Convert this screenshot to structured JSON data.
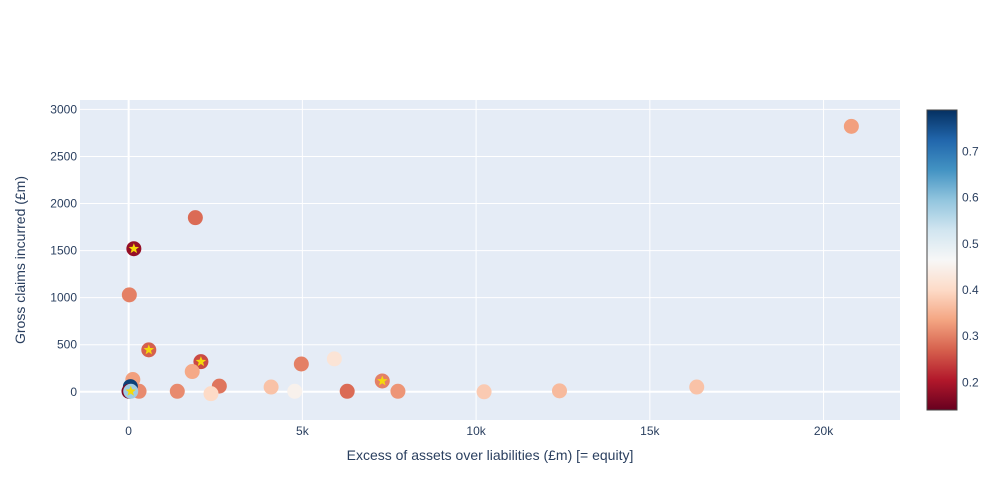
{
  "chart_data": {
    "type": "scatter",
    "title": "",
    "xlabel": "Excess of assets over liabilities (£m) [= equity]",
    "ylabel": "Gross claims incurred (£m)",
    "xlim": [
      -1400,
      22200
    ],
    "ylim": [
      -300,
      3100
    ],
    "x_ticks": [
      {
        "value": 0,
        "label": "0"
      },
      {
        "value": 5000,
        "label": "5k"
      },
      {
        "value": 10000,
        "label": "10k"
      },
      {
        "value": 15000,
        "label": "15k"
      },
      {
        "value": 20000,
        "label": "20k"
      }
    ],
    "y_ticks": [
      {
        "value": 0,
        "label": "0"
      },
      {
        "value": 500,
        "label": "500"
      },
      {
        "value": 1000,
        "label": "1000"
      },
      {
        "value": 1500,
        "label": "1500"
      },
      {
        "value": 2000,
        "label": "2000"
      },
      {
        "value": 2500,
        "label": "2500"
      },
      {
        "value": 3000,
        "label": "3000"
      }
    ],
    "grid": true,
    "colorscale": "RdBu",
    "colorbar": {
      "range": [
        0.14,
        0.79
      ],
      "ticks": [
        {
          "value": 0.2,
          "label": "0.2"
        },
        {
          "value": 0.3,
          "label": "0.3"
        },
        {
          "value": 0.4,
          "label": "0.4"
        },
        {
          "value": 0.5,
          "label": "0.5"
        },
        {
          "value": 0.6,
          "label": "0.6"
        },
        {
          "value": 0.7,
          "label": "0.7"
        }
      ]
    },
    "points": [
      {
        "x": 20800,
        "y": 2820,
        "c": 0.33,
        "star": false
      },
      {
        "x": 1920,
        "y": 1850,
        "c": 0.28,
        "star": false
      },
      {
        "x": 150,
        "y": 1520,
        "c": 0.18,
        "star": true
      },
      {
        "x": 20,
        "y": 1030,
        "c": 0.3,
        "star": false
      },
      {
        "x": 580,
        "y": 445,
        "c": 0.27,
        "star": true
      },
      {
        "x": 2080,
        "y": 320,
        "c": 0.25,
        "star": true
      },
      {
        "x": 4970,
        "y": 295,
        "c": 0.3,
        "star": false
      },
      {
        "x": 5920,
        "y": 350,
        "c": 0.42,
        "star": false
      },
      {
        "x": 7300,
        "y": 115,
        "c": 0.3,
        "star": true
      },
      {
        "x": 1830,
        "y": 215,
        "c": 0.34,
        "star": false
      },
      {
        "x": 120,
        "y": 130,
        "c": 0.33,
        "star": false
      },
      {
        "x": 2610,
        "y": 60,
        "c": 0.29,
        "star": false
      },
      {
        "x": 4100,
        "y": 50,
        "c": 0.37,
        "star": false
      },
      {
        "x": 16350,
        "y": 50,
        "c": 0.37,
        "star": false
      },
      {
        "x": 1400,
        "y": 5,
        "c": 0.31,
        "star": false
      },
      {
        "x": 6290,
        "y": 5,
        "c": 0.28,
        "star": false
      },
      {
        "x": 7750,
        "y": 5,
        "c": 0.32,
        "star": false
      },
      {
        "x": 10230,
        "y": 0,
        "c": 0.38,
        "star": false
      },
      {
        "x": 12400,
        "y": 10,
        "c": 0.36,
        "star": false
      },
      {
        "x": 4780,
        "y": 5,
        "c": 0.45,
        "star": false
      },
      {
        "x": 2370,
        "y": -20,
        "c": 0.4,
        "star": false
      },
      {
        "x": 300,
        "y": 5,
        "c": 0.31,
        "star": false
      },
      {
        "x": 50,
        "y": 55,
        "c": 0.77,
        "star": false
      },
      {
        "x": 10,
        "y": 5,
        "c": 0.16,
        "star": false
      },
      {
        "x": 60,
        "y": 5,
        "c": 0.58,
        "star": true
      }
    ]
  }
}
